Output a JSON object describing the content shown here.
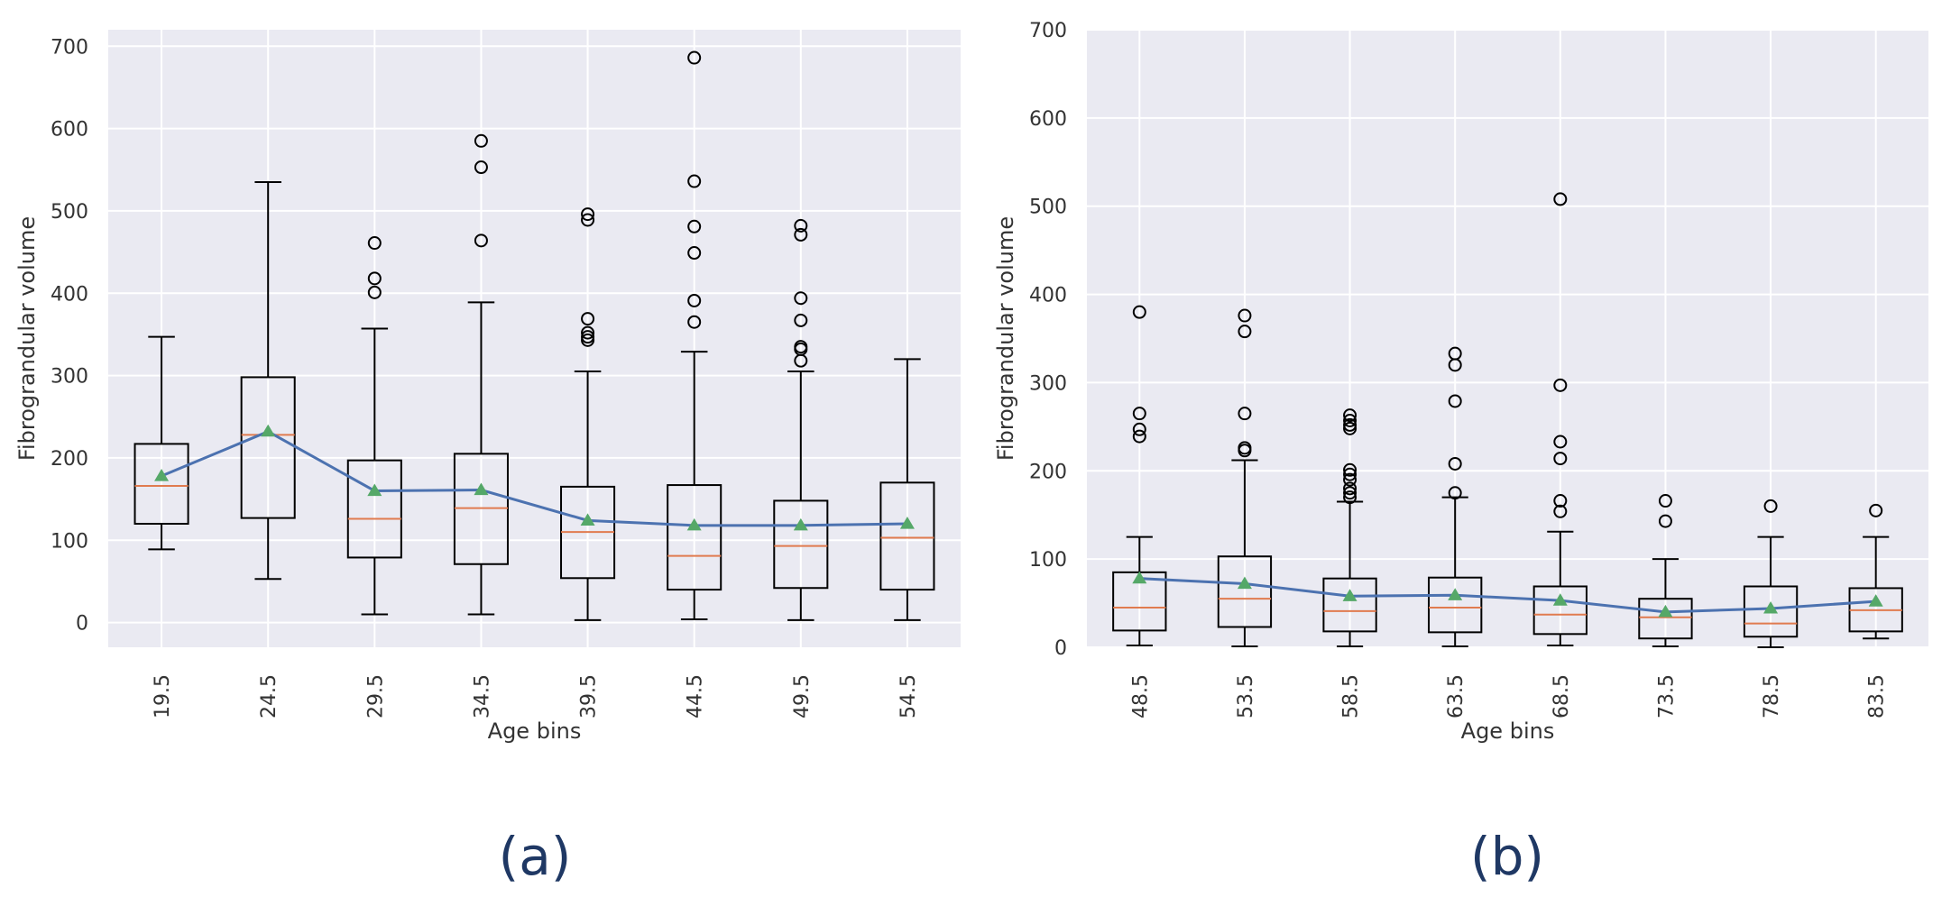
{
  "chart_data": [
    {
      "panel": "(a)",
      "type": "box",
      "xlabel": "Age bins",
      "ylabel": "Fibrograndular volume",
      "ylim": [
        -30,
        720
      ],
      "yticks": [
        0,
        100,
        200,
        300,
        400,
        500,
        600,
        700
      ],
      "categories": [
        "19.5",
        "24.5",
        "29.5",
        "34.5",
        "39.5",
        "44.5",
        "49.5",
        "54.5"
      ],
      "boxes": [
        {
          "whislo": 89,
          "q1": 120,
          "med": 166,
          "q3": 217,
          "whishi": 347,
          "mean": 178,
          "fliers": []
        },
        {
          "whislo": 53,
          "q1": 127,
          "med": 228,
          "q3": 298,
          "whishi": 535,
          "mean": 232,
          "fliers": []
        },
        {
          "whislo": 10,
          "q1": 79,
          "med": 126,
          "q3": 197,
          "whishi": 357,
          "mean": 160,
          "fliers": [
            401,
            418,
            461
          ]
        },
        {
          "whislo": 10,
          "q1": 71,
          "med": 139,
          "q3": 205,
          "whishi": 389,
          "mean": 161,
          "fliers": [
            464,
            553,
            585
          ]
        },
        {
          "whislo": 3,
          "q1": 54,
          "med": 110,
          "q3": 165,
          "whishi": 305,
          "mean": 124,
          "fliers": [
            343,
            347,
            352,
            369,
            489,
            496
          ]
        },
        {
          "whislo": 4,
          "q1": 40,
          "med": 81,
          "q3": 167,
          "whishi": 329,
          "mean": 118,
          "fliers": [
            365,
            391,
            449,
            481,
            536,
            686
          ]
        },
        {
          "whislo": 3,
          "q1": 42,
          "med": 93,
          "q3": 148,
          "whishi": 305,
          "mean": 118,
          "fliers": [
            318,
            332,
            335,
            367,
            394,
            471,
            482
          ]
        },
        {
          "whislo": 3,
          "q1": 40,
          "med": 103,
          "q3": 170,
          "whishi": 320,
          "mean": 120,
          "fliers": []
        }
      ]
    },
    {
      "panel": "(b)",
      "type": "box",
      "xlabel": "Age bins",
      "ylabel": "Fibrograndular volume",
      "ylim": [
        0,
        700
      ],
      "yticks": [
        0,
        100,
        200,
        300,
        400,
        500,
        600,
        700
      ],
      "categories": [
        "48.5",
        "53.5",
        "58.5",
        "63.5",
        "68.5",
        "73.5",
        "78.5",
        "83.5"
      ],
      "boxes": [
        {
          "whislo": 2,
          "q1": 19,
          "med": 45,
          "q3": 85,
          "whishi": 125,
          "mean": 78,
          "fliers": [
            239,
            247,
            265,
            380
          ]
        },
        {
          "whislo": 1,
          "q1": 23,
          "med": 55,
          "q3": 103,
          "whishi": 212,
          "mean": 72,
          "fliers": [
            223,
            226,
            265,
            358,
            376
          ]
        },
        {
          "whislo": 1,
          "q1": 18,
          "med": 41,
          "q3": 78,
          "whishi": 165,
          "mean": 58,
          "fliers": [
            170,
            175,
            180,
            190,
            196,
            201,
            248,
            252,
            257,
            263
          ]
        },
        {
          "whislo": 1,
          "q1": 17,
          "med": 45,
          "q3": 79,
          "whishi": 170,
          "mean": 59,
          "fliers": [
            175,
            208,
            279,
            320,
            333
          ]
        },
        {
          "whislo": 2,
          "q1": 15,
          "med": 37,
          "q3": 69,
          "whishi": 131,
          "mean": 53,
          "fliers": [
            154,
            166,
            214,
            233,
            297,
            508
          ]
        },
        {
          "whislo": 1,
          "q1": 10,
          "med": 34,
          "q3": 55,
          "whishi": 100,
          "mean": 40,
          "fliers": [
            143,
            166
          ]
        },
        {
          "whislo": 0,
          "q1": 12,
          "med": 27,
          "q3": 69,
          "whishi": 125,
          "mean": 44,
          "fliers": [
            160
          ]
        },
        {
          "whislo": 10,
          "q1": 18,
          "med": 42,
          "q3": 67,
          "whishi": 125,
          "mean": 52,
          "fliers": [
            155
          ]
        }
      ]
    }
  ]
}
